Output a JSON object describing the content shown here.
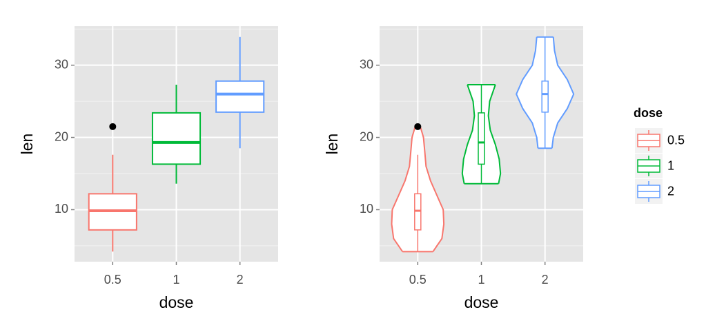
{
  "chart_data": [
    {
      "type": "box",
      "xlabel": "dose",
      "ylabel": "len",
      "categories": [
        "0.5",
        "1",
        "2"
      ],
      "colors": [
        "#F8766D",
        "#00BA38",
        "#619CFF"
      ],
      "ylim": [
        2.8,
        35.4
      ],
      "yticks": [
        10,
        20,
        30
      ],
      "minor_yticks": [
        5,
        15,
        25,
        35
      ],
      "grid": true,
      "boxes": [
        {
          "low": 4.2,
          "q1": 7.2,
          "median": 9.85,
          "q3": 12.2,
          "high": 17.6,
          "outliers": [
            21.5
          ]
        },
        {
          "low": 13.6,
          "q1": 16.3,
          "median": 19.3,
          "q3": 23.4,
          "high": 27.3,
          "outliers": []
        },
        {
          "low": 18.5,
          "q1": 23.5,
          "median": 26,
          "q3": 27.8,
          "high": 33.9,
          "outliers": []
        }
      ]
    },
    {
      "type": "violin",
      "xlabel": "dose",
      "ylabel": "len",
      "categories": [
        "0.5",
        "1",
        "2"
      ],
      "colors": [
        "#F8766D",
        "#00BA38",
        "#619CFF"
      ],
      "ylim": [
        2.8,
        35.4
      ],
      "yticks": [
        10,
        20,
        30
      ],
      "minor_yticks": [
        5,
        15,
        25,
        35
      ],
      "grid": true,
      "boxes": [
        {
          "low": 4.2,
          "q1": 7.2,
          "median": 9.85,
          "q3": 12.2,
          "high": 17.6,
          "outliers": [
            21.5
          ]
        },
        {
          "low": 13.6,
          "q1": 16.3,
          "median": 19.3,
          "q3": 23.4,
          "high": 27.3,
          "outliers": []
        },
        {
          "low": 18.5,
          "q1": 23.5,
          "median": 26,
          "q3": 27.8,
          "high": 33.9,
          "outliers": []
        }
      ],
      "violins": [
        {
          "y": [
            4.2,
            6,
            8,
            10,
            12,
            14,
            16,
            18,
            20,
            21.5
          ],
          "width": [
            0.24,
            0.38,
            0.41,
            0.4,
            0.3,
            0.2,
            0.13,
            0.11,
            0.09,
            0.04
          ]
        },
        {
          "y": [
            13.6,
            15,
            17,
            19,
            21,
            23,
            25,
            27.3
          ],
          "width": [
            0.27,
            0.3,
            0.28,
            0.22,
            0.14,
            0.11,
            0.13,
            0.22
          ]
        },
        {
          "y": [
            18.5,
            20,
            22,
            24,
            26,
            28,
            30,
            32,
            33.9
          ],
          "width": [
            0.11,
            0.13,
            0.2,
            0.35,
            0.45,
            0.35,
            0.2,
            0.15,
            0.13
          ]
        }
      ],
      "legend": {
        "title": "dose",
        "entries": [
          "0.5",
          "1",
          "2"
        ],
        "position": "right"
      }
    }
  ]
}
